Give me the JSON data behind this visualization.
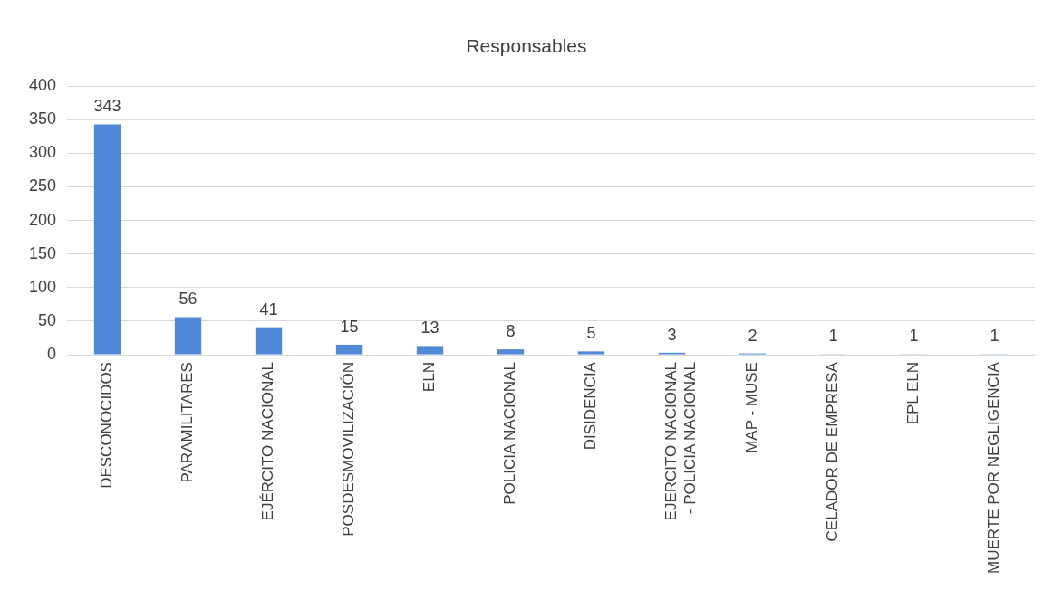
{
  "chart_data": {
    "type": "bar",
    "title": "Responsables",
    "categories": [
      "DESCONOCIDOS",
      "PARAMILITARES",
      "EJÉRCITO NACIONAL",
      "POSDESMOVILIZACIÓN",
      "ELN",
      "POLICIA NACIONAL",
      "DISIDENCIA",
      "EJERCITO NACIONAL - POLICIA NACIONAL",
      "MAP - MUSE",
      "CELADOR DE EMPRESA",
      "EPL ELN",
      "MUERTE POR NEGLIGENCIA"
    ],
    "values": [
      343,
      56,
      41,
      15,
      13,
      8,
      5,
      3,
      2,
      1,
      1,
      1
    ],
    "color": "#5189d8",
    "ylim": [
      0,
      400
    ],
    "yticks": [
      0,
      50,
      100,
      150,
      200,
      250,
      300,
      350,
      400
    ],
    "grid": "y",
    "data_labels": true,
    "legend": false
  }
}
